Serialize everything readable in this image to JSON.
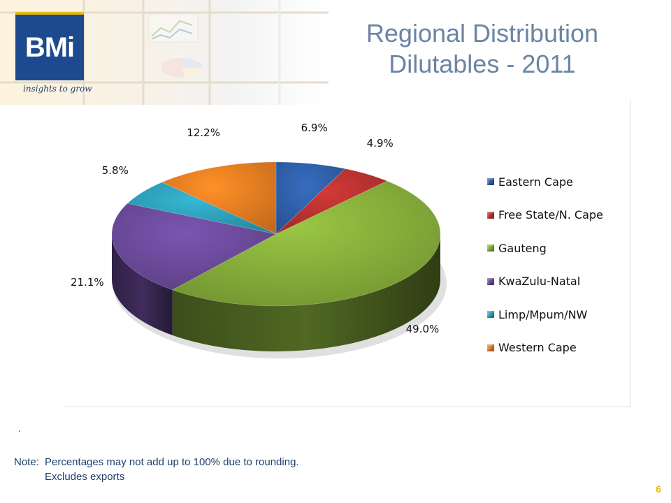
{
  "brand": {
    "logo_text": "BMi",
    "tagline": "insights to grow"
  },
  "title": {
    "line1": "Regional Distribution",
    "line2": "Dilutables   - 2011"
  },
  "chart_data": {
    "type": "pie",
    "title": "",
    "categories": [
      "Eastern Cape",
      "Free State/N. Cape",
      "Gauteng",
      "KwaZulu-Natal",
      "Limp/Mpum/NW",
      "Western Cape"
    ],
    "values": [
      6.9,
      4.9,
      49.0,
      21.1,
      5.8,
      12.2
    ],
    "labels": [
      "6.9%",
      "4.9%",
      "49.0%",
      "21.1%",
      "5.8%",
      "12.2%"
    ],
    "colors": [
      "#2f5fa8",
      "#b83230",
      "#86ad3a",
      "#6b4a9a",
      "#2e9fb8",
      "#e87d22"
    ],
    "legend_position": "right",
    "style": "3d"
  },
  "footer": {
    "dot": ".",
    "note_label": "Note:",
    "note_line1": "Percentages may not add up to 100% due to rounding.",
    "note_line2": "Excludes exports",
    "page_number": "6"
  }
}
